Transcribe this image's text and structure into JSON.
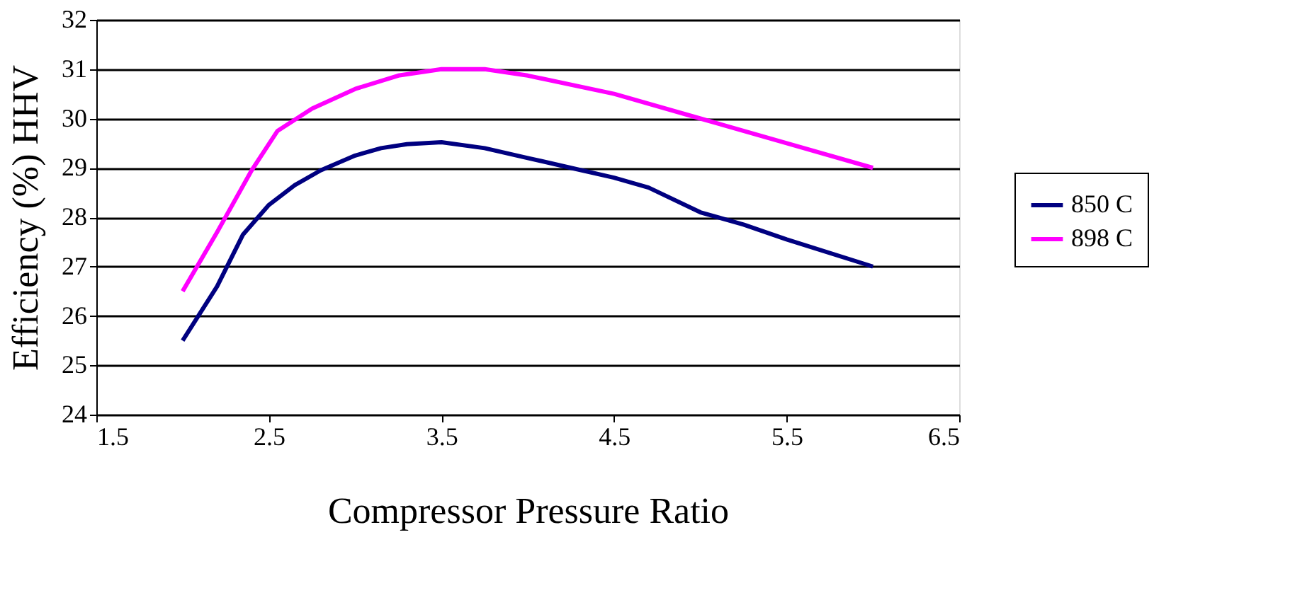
{
  "chart_data": {
    "type": "line",
    "xlabel": "Compressor Pressure Ratio",
    "ylabel": "Efficiency (%) HHV",
    "xlim": [
      1.5,
      6.5
    ],
    "xticks": [
      1.5,
      2.5,
      3.5,
      4.5,
      5.5,
      6.5
    ],
    "ylim": [
      24,
      32
    ],
    "yticks": [
      24,
      25,
      26,
      27,
      28,
      29,
      30,
      31,
      32
    ],
    "grid": "y",
    "legend": "right",
    "marker": "none",
    "line_style": "solid",
    "series": [
      {
        "name": "850 C",
        "color": "#000080",
        "x": [
          2,
          2.2,
          2.35,
          2.5,
          2.65,
          2.8,
          3,
          3.15,
          3.3,
          3.5,
          3.75,
          4,
          4.25,
          4.5,
          4.7,
          5,
          5.25,
          5.5,
          6
        ],
        "values": [
          25.5,
          26.6,
          27.65,
          28.25,
          28.65,
          28.95,
          29.25,
          29.4,
          29.48,
          29.52,
          29.4,
          29.2,
          29.0,
          28.8,
          28.6,
          28.1,
          27.85,
          27.55,
          27.0
        ]
      },
      {
        "name": "898 C",
        "color": "#ff00ff",
        "x": [
          2,
          2.2,
          2.4,
          2.55,
          2.75,
          3,
          3.25,
          3.5,
          3.75,
          4,
          4.5,
          5,
          5.5,
          6
        ],
        "values": [
          26.5,
          27.7,
          28.95,
          29.75,
          30.2,
          30.6,
          30.87,
          31.0,
          31.0,
          30.87,
          30.5,
          30.0,
          29.5,
          29.0
        ]
      }
    ]
  }
}
